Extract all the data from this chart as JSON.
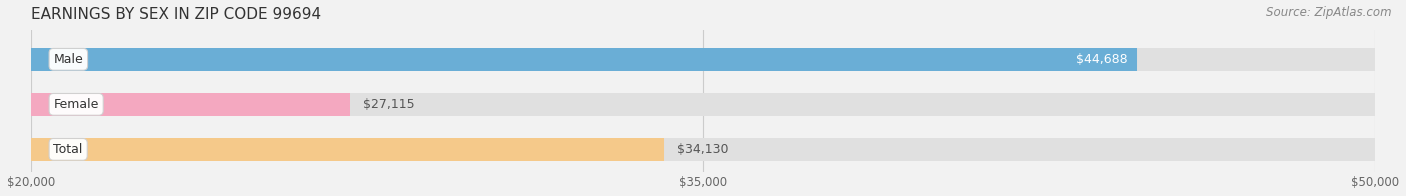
{
  "title": "EARNINGS BY SEX IN ZIP CODE 99694",
  "source": "Source: ZipAtlas.com",
  "categories": [
    "Male",
    "Female",
    "Total"
  ],
  "values": [
    44688,
    27115,
    34130
  ],
  "bar_colors": [
    "#6aaed6",
    "#f4a8c0",
    "#f5c98a"
  ],
  "value_labels": [
    "$44,688",
    "$27,115",
    "$34,130"
  ],
  "value_label_colors": [
    "#ffffff",
    "#555555",
    "#555555"
  ],
  "xmin": 20000,
  "xmax": 50000,
  "xticks": [
    20000,
    35000,
    50000
  ],
  "xtick_labels": [
    "$20,000",
    "$35,000",
    "$50,000"
  ],
  "background_color": "#f2f2f2",
  "bar_bg_color": "#e0e0e0",
  "title_fontsize": 11,
  "source_fontsize": 8.5,
  "label_fontsize": 9,
  "value_fontsize": 9
}
